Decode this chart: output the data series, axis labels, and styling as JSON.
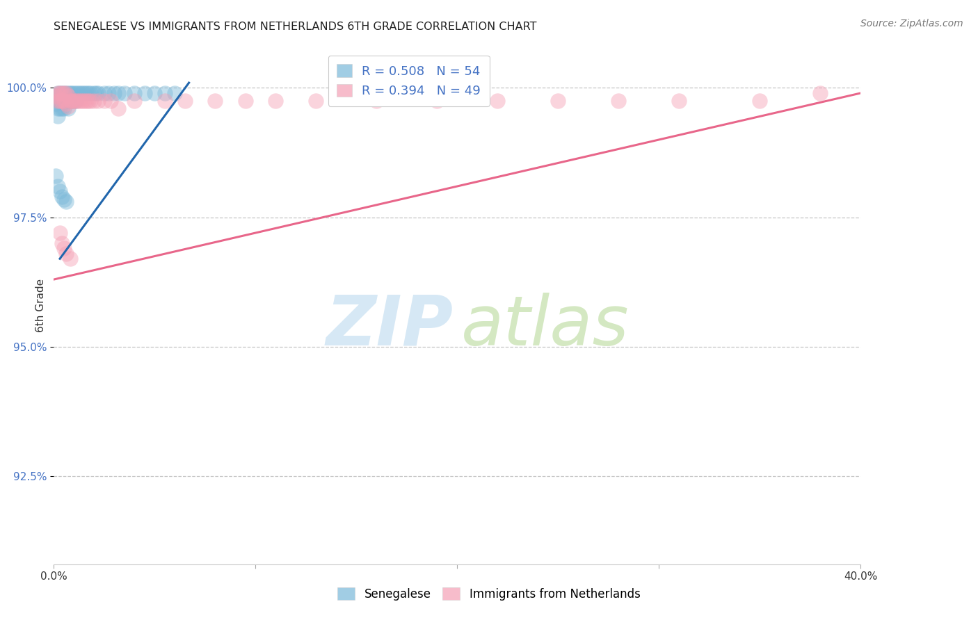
{
  "title": "SENEGALESE VS IMMIGRANTS FROM NETHERLANDS 6TH GRADE CORRELATION CHART",
  "source": "Source: ZipAtlas.com",
  "ylabel_label": "6th Grade",
  "ylabel_ticks": [
    "100.0%",
    "97.5%",
    "95.0%",
    "92.5%"
  ],
  "ylabel_values": [
    1.0,
    0.975,
    0.95,
    0.925
  ],
  "xlim": [
    0.0,
    0.4
  ],
  "ylim": [
    0.908,
    1.008
  ],
  "legend_blue_r": "R = 0.508",
  "legend_blue_n": "N = 54",
  "legend_pink_r": "R = 0.394",
  "legend_pink_n": "N = 49",
  "blue_color": "#7ab8d9",
  "pink_color": "#f4a0b5",
  "blue_line_color": "#2166ac",
  "pink_line_color": "#e8668a",
  "blue_line": [
    [
      0.003,
      0.967
    ],
    [
      0.067,
      1.001
    ]
  ],
  "pink_line": [
    [
      0.0,
      0.963
    ],
    [
      0.4,
      0.999
    ]
  ],
  "blue_x": [
    0.001,
    0.001,
    0.002,
    0.002,
    0.002,
    0.002,
    0.003,
    0.003,
    0.003,
    0.004,
    0.004,
    0.004,
    0.005,
    0.005,
    0.005,
    0.006,
    0.006,
    0.007,
    0.007,
    0.007,
    0.008,
    0.008,
    0.009,
    0.009,
    0.01,
    0.01,
    0.011,
    0.011,
    0.012,
    0.013,
    0.014,
    0.015,
    0.016,
    0.017,
    0.018,
    0.02,
    0.021,
    0.022,
    0.025,
    0.027,
    0.03,
    0.032,
    0.035,
    0.04,
    0.045,
    0.05,
    0.055,
    0.06,
    0.001,
    0.002,
    0.003,
    0.004,
    0.005,
    0.006
  ],
  "blue_y": [
    0.9985,
    0.997,
    0.999,
    0.9975,
    0.996,
    0.9945,
    0.999,
    0.9975,
    0.996,
    0.999,
    0.9975,
    0.996,
    0.999,
    0.9975,
    0.996,
    0.999,
    0.9975,
    0.999,
    0.9975,
    0.996,
    0.999,
    0.9975,
    0.999,
    0.9975,
    0.999,
    0.9975,
    0.999,
    0.9975,
    0.999,
    0.999,
    0.999,
    0.999,
    0.999,
    0.999,
    0.999,
    0.999,
    0.999,
    0.999,
    0.999,
    0.999,
    0.999,
    0.999,
    0.999,
    0.999,
    0.999,
    0.999,
    0.999,
    0.999,
    0.983,
    0.981,
    0.98,
    0.979,
    0.9785,
    0.978
  ],
  "pink_x": [
    0.001,
    0.002,
    0.002,
    0.003,
    0.003,
    0.004,
    0.004,
    0.005,
    0.005,
    0.006,
    0.006,
    0.007,
    0.007,
    0.008,
    0.009,
    0.01,
    0.011,
    0.012,
    0.013,
    0.014,
    0.015,
    0.016,
    0.017,
    0.018,
    0.02,
    0.022,
    0.025,
    0.028,
    0.032,
    0.04,
    0.055,
    0.065,
    0.08,
    0.095,
    0.11,
    0.13,
    0.16,
    0.19,
    0.22,
    0.25,
    0.28,
    0.31,
    0.35,
    0.38,
    0.005,
    0.003,
    0.004,
    0.006,
    0.008
  ],
  "pink_y": [
    0.9985,
    0.999,
    0.9975,
    0.999,
    0.9975,
    0.999,
    0.9975,
    0.999,
    0.9975,
    0.999,
    0.997,
    0.9985,
    0.9965,
    0.9975,
    0.9975,
    0.9975,
    0.9975,
    0.9975,
    0.9975,
    0.9975,
    0.9975,
    0.9975,
    0.9975,
    0.9975,
    0.9975,
    0.9975,
    0.9975,
    0.9975,
    0.996,
    0.9975,
    0.9975,
    0.9975,
    0.9975,
    0.9975,
    0.9975,
    0.9975,
    0.9975,
    0.9975,
    0.9975,
    0.9975,
    0.9975,
    0.9975,
    0.9975,
    0.999,
    0.969,
    0.972,
    0.97,
    0.968,
    0.967
  ],
  "watermark_zip_color": "#d6e8f5",
  "watermark_atlas_color": "#d4e8c2",
  "background_color": "#ffffff",
  "grid_color": "#c0c0c0"
}
